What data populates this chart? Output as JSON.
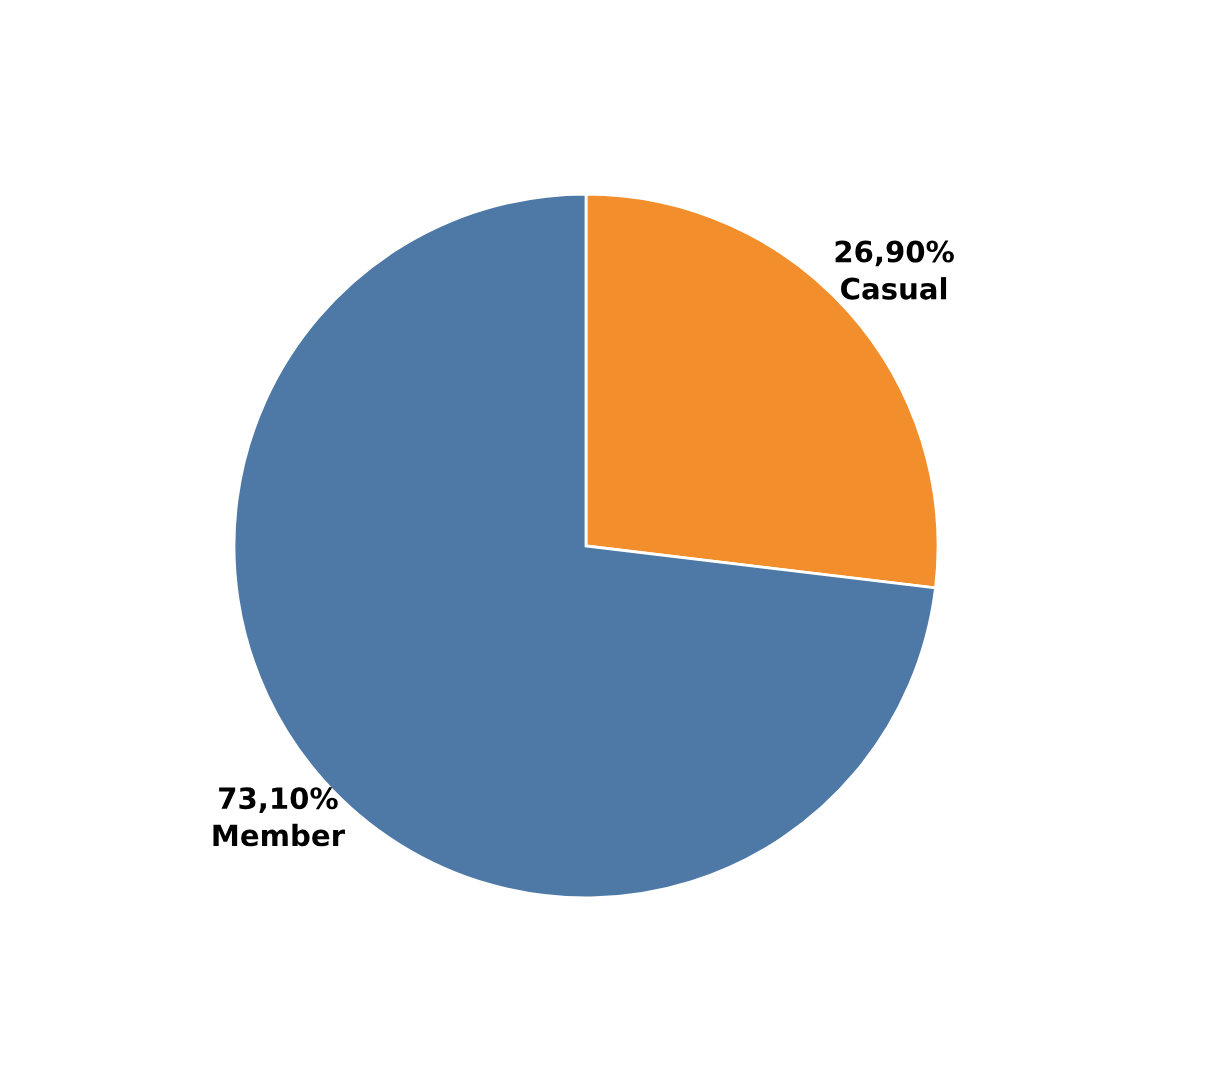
{
  "chart_data": {
    "type": "pie",
    "categories": [
      "Casual",
      "Member"
    ],
    "values": [
      26.9,
      73.1
    ],
    "colors": [
      "#f28e2b",
      "#4e79a7"
    ],
    "value_labels": [
      "26,90%",
      "73,10%"
    ]
  }
}
